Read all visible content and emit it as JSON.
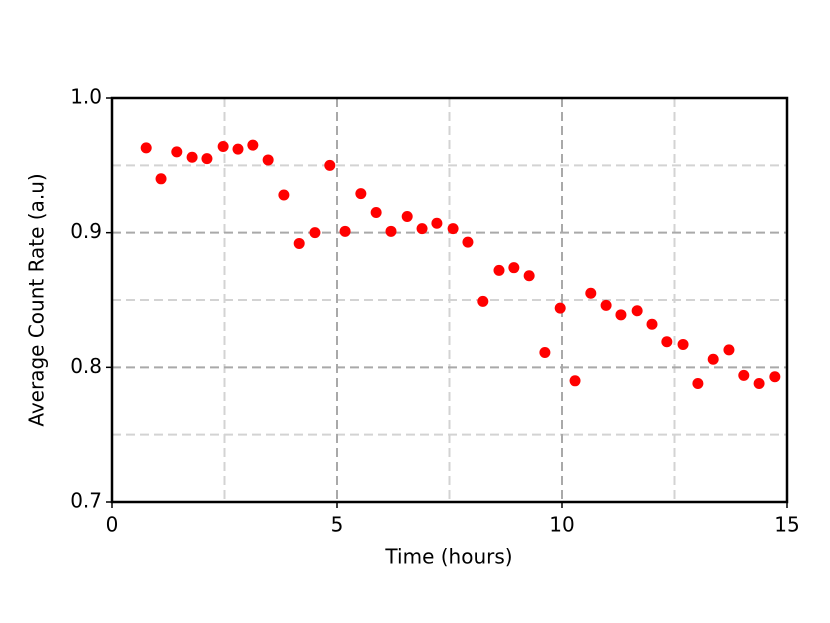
{
  "chart_data": {
    "type": "scatter",
    "xlabel": "Time (hours)",
    "ylabel": "Average Count Rate (a.u)",
    "color": "#ff0000",
    "x": [
      0.76,
      1.09,
      1.44,
      1.78,
      2.11,
      2.47,
      2.8,
      3.13,
      3.47,
      3.82,
      4.16,
      4.51,
      4.84,
      5.18,
      5.53,
      5.87,
      6.2,
      6.56,
      6.89,
      7.22,
      7.58,
      7.91,
      8.24,
      8.6,
      8.93,
      9.27,
      9.62,
      9.96,
      10.29,
      10.64,
      10.98,
      11.31,
      11.67,
      12.0,
      12.33,
      12.69,
      13.02,
      13.36,
      13.71,
      14.04,
      14.38,
      14.73
    ],
    "values": [
      0.963,
      0.94,
      0.96,
      0.956,
      0.955,
      0.964,
      0.962,
      0.965,
      0.954,
      0.928,
      0.892,
      0.9,
      0.95,
      0.901,
      0.929,
      0.915,
      0.901,
      0.912,
      0.903,
      0.907,
      0.903,
      0.893,
      0.849,
      0.872,
      0.874,
      0.868,
      0.811,
      0.844,
      0.79,
      0.855,
      0.846,
      0.839,
      0.842,
      0.832,
      0.819,
      0.817,
      0.788,
      0.806,
      0.813,
      0.794,
      0.788,
      0.793
    ],
    "xlim": [
      0,
      15
    ],
    "xticks": [
      0,
      5,
      10,
      15
    ],
    "xminor": [
      2.5,
      7.5,
      12.5
    ],
    "ylim": [
      0.7,
      1.0
    ],
    "yticks": [
      0.7,
      0.8,
      0.9,
      {
        "value": 1.0,
        "label": "1.0"
      }
    ],
    "yminor": [
      0.75,
      0.85,
      0.95
    ],
    "grid": true
  }
}
